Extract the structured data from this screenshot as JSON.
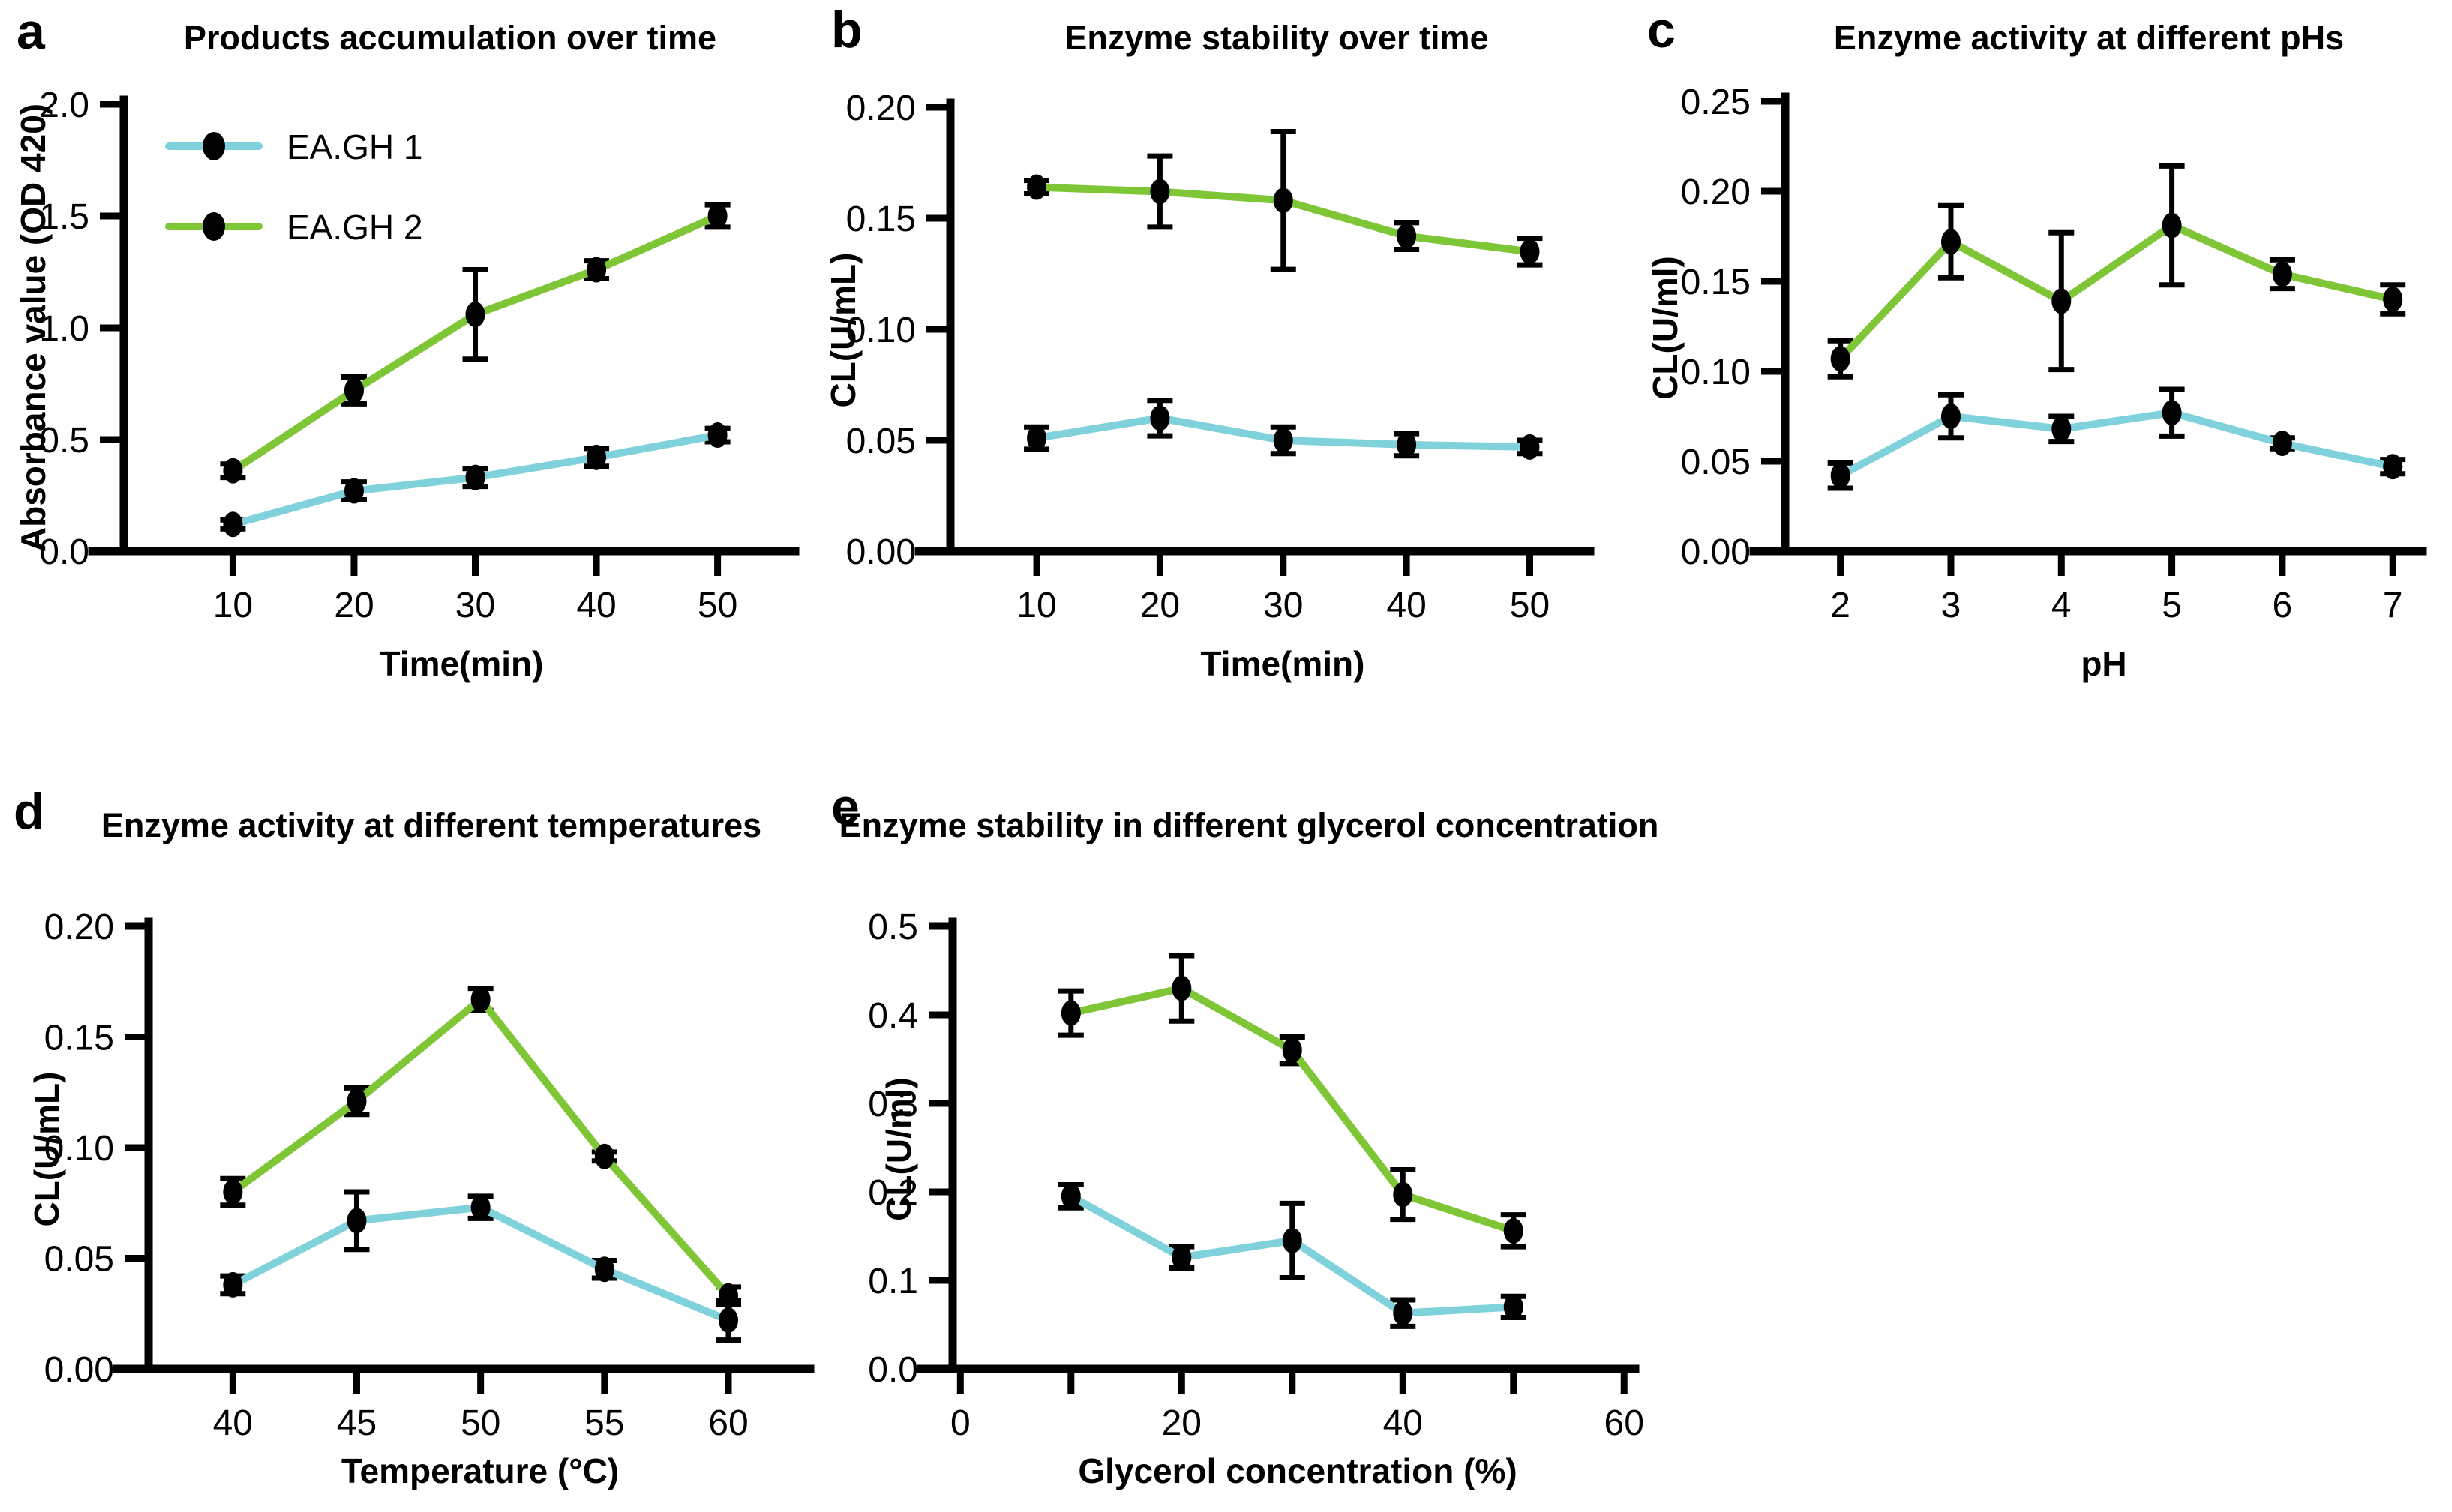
{
  "figure": {
    "background": "#ffffff",
    "series_colors": {
      "EA.GH 1": "#7FD1DB",
      "EA.GH 2": "#7EC636"
    },
    "axis_color": "#000000",
    "marker_color": "#000000"
  },
  "chart_data": [
    {
      "type": "line",
      "panel_letter": "a",
      "title": "Products accumulation over time",
      "xlabel": "Time(min)",
      "ylabel": "Absorbance value (OD 420)",
      "x": [
        10,
        20,
        30,
        40,
        50
      ],
      "xlim": [
        1,
        56.4
      ],
      "ylim": [
        0,
        2.0
      ],
      "xticks": [
        {
          "v": 10,
          "label": "10"
        },
        {
          "v": 20,
          "label": "20"
        },
        {
          "v": 30,
          "label": "30"
        },
        {
          "v": 40,
          "label": "40"
        },
        {
          "v": 50,
          "label": "50"
        }
      ],
      "yticks": [
        {
          "v": 0,
          "label": "0.0"
        },
        {
          "v": 0.5,
          "label": "0.5"
        },
        {
          "v": 1.0,
          "label": "1.0"
        },
        {
          "v": 1.5,
          "label": "1.5"
        },
        {
          "v": 2.0,
          "label": "2.0"
        }
      ],
      "grid": false,
      "legend": {
        "position": "top-left-inside",
        "entries": [
          "EA.GH 1",
          "EA.GH 2"
        ]
      },
      "series": [
        {
          "name": "EA.GH 1",
          "color": "#7FD1DB",
          "values": [
            0.12,
            0.27,
            0.33,
            0.42,
            0.52
          ],
          "errors": [
            0.02,
            0.04,
            0.04,
            0.04,
            0.03
          ]
        },
        {
          "name": "EA.GH 2",
          "color": "#7EC636",
          "values": [
            0.36,
            0.72,
            1.06,
            1.26,
            1.5
          ],
          "errors": [
            0.03,
            0.06,
            0.2,
            0.04,
            0.05
          ]
        }
      ]
    },
    {
      "type": "line",
      "panel_letter": "b",
      "title": "Enzyme stability over time",
      "xlabel": "Time(min)",
      "ylabel": "CL(U/mL)",
      "x": [
        10,
        20,
        30,
        40,
        50
      ],
      "xlim": [
        3,
        54.9
      ],
      "ylim": [
        0,
        0.2
      ],
      "xticks": [
        {
          "v": 10,
          "label": "10"
        },
        {
          "v": 20,
          "label": "20"
        },
        {
          "v": 30,
          "label": "30"
        },
        {
          "v": 40,
          "label": "40"
        },
        {
          "v": 50,
          "label": "50"
        }
      ],
      "yticks": [
        {
          "v": 0,
          "label": "0.00"
        },
        {
          "v": 0.05,
          "label": "0.05"
        },
        {
          "v": 0.1,
          "label": "0.10"
        },
        {
          "v": 0.15,
          "label": "0.15"
        },
        {
          "v": 0.2,
          "label": "0.20"
        }
      ],
      "grid": false,
      "series": [
        {
          "name": "EA.GH 1",
          "color": "#7FD1DB",
          "values": [
            0.051,
            0.06,
            0.05,
            0.048,
            0.047
          ],
          "errors": [
            0.005,
            0.008,
            0.006,
            0.005,
            0.003
          ]
        },
        {
          "name": "EA.GH 2",
          "color": "#7EC636",
          "values": [
            0.164,
            0.162,
            0.158,
            0.142,
            0.135
          ],
          "errors": [
            0.003,
            0.016,
            0.031,
            0.006,
            0.006
          ]
        }
      ]
    },
    {
      "type": "line",
      "panel_letter": "c",
      "title": "Enzyme activity at different pHs",
      "xlabel": "pH",
      "ylabel": "CL(U/ml)",
      "x": [
        2,
        3,
        4,
        5,
        6,
        7
      ],
      "xlim": [
        1.5,
        7.27
      ],
      "ylim": [
        0,
        0.25
      ],
      "xticks": [
        {
          "v": 2,
          "label": "2"
        },
        {
          "v": 3,
          "label": "3"
        },
        {
          "v": 4,
          "label": "4"
        },
        {
          "v": 5,
          "label": "5"
        },
        {
          "v": 6,
          "label": "6"
        },
        {
          "v": 7,
          "label": "7"
        }
      ],
      "yticks": [
        {
          "v": 0,
          "label": "0.00"
        },
        {
          "v": 0.05,
          "label": "0.05"
        },
        {
          "v": 0.1,
          "label": "0.10"
        },
        {
          "v": 0.15,
          "label": "0.15"
        },
        {
          "v": 0.2,
          "label": "0.20"
        },
        {
          "v": 0.25,
          "label": "0.25"
        }
      ],
      "grid": false,
      "series": [
        {
          "name": "EA.GH 1",
          "color": "#7FD1DB",
          "values": [
            0.042,
            0.075,
            0.068,
            0.077,
            0.06,
            0.047
          ],
          "errors": [
            0.007,
            0.012,
            0.007,
            0.013,
            0.003,
            0.004
          ]
        },
        {
          "name": "EA.GH 2",
          "color": "#7EC636",
          "values": [
            0.107,
            0.172,
            0.139,
            0.181,
            0.154,
            0.14
          ],
          "errors": [
            0.01,
            0.02,
            0.038,
            0.033,
            0.008,
            0.008
          ]
        }
      ]
    },
    {
      "type": "line",
      "panel_letter": "d",
      "title": "Enzyme activity at different temperatures",
      "xlabel": "Temperature (°C)",
      "ylabel": "CL(U/mL)",
      "x": [
        40,
        45,
        50,
        55,
        60
      ],
      "xlim": [
        36.6,
        63.3
      ],
      "ylim": [
        0,
        0.2
      ],
      "xticks": [
        {
          "v": 40,
          "label": "40"
        },
        {
          "v": 45,
          "label": "45"
        },
        {
          "v": 50,
          "label": "50"
        },
        {
          "v": 55,
          "label": "55"
        },
        {
          "v": 60,
          "label": "60"
        }
      ],
      "yticks": [
        {
          "v": 0,
          "label": "0.00"
        },
        {
          "v": 0.05,
          "label": "0.05"
        },
        {
          "v": 0.1,
          "label": "0.10"
        },
        {
          "v": 0.15,
          "label": "0.15"
        },
        {
          "v": 0.2,
          "label": "0.20"
        }
      ],
      "grid": false,
      "series": [
        {
          "name": "EA.GH 1",
          "color": "#7FD1DB",
          "values": [
            0.038,
            0.067,
            0.073,
            0.045,
            0.022
          ],
          "errors": [
            0.004,
            0.013,
            0.005,
            0.004,
            0.009
          ]
        },
        {
          "name": "EA.GH 2",
          "color": "#7EC636",
          "values": [
            0.08,
            0.121,
            0.167,
            0.096,
            0.033
          ],
          "errors": [
            0.006,
            0.006,
            0.005,
            0.002,
            0.004
          ]
        }
      ]
    },
    {
      "type": "line",
      "panel_letter": "e",
      "title": "Enzyme stability in different glycerol concentration",
      "xlabel": "Glycerol concentration (%)",
      "ylabel": "CL(U/ml)",
      "x": [
        10,
        20,
        30,
        40,
        50
      ],
      "xlim": [
        -0.7,
        61
      ],
      "ylim": [
        0,
        0.5
      ],
      "xticks": [
        {
          "v": 0,
          "label": "0"
        },
        {
          "v": 20,
          "label": "20"
        },
        {
          "v": 40,
          "label": "40"
        },
        {
          "v": 60,
          "label": "60"
        }
      ],
      "minor_xticks": [
        10,
        30,
        50
      ],
      "yticks": [
        {
          "v": 0,
          "label": "0.0"
        },
        {
          "v": 0.1,
          "label": "0.1"
        },
        {
          "v": 0.2,
          "label": "0.2"
        },
        {
          "v": 0.3,
          "label": "0.3"
        },
        {
          "v": 0.4,
          "label": "0.4"
        },
        {
          "v": 0.5,
          "label": "0.5"
        }
      ],
      "grid": false,
      "series": [
        {
          "name": "EA.GH 1",
          "color": "#7FD1DB",
          "values": [
            0.195,
            0.126,
            0.145,
            0.063,
            0.07
          ],
          "errors": [
            0.013,
            0.012,
            0.042,
            0.015,
            0.012
          ]
        },
        {
          "name": "EA.GH 2",
          "color": "#7EC636",
          "values": [
            0.402,
            0.43,
            0.36,
            0.197,
            0.156
          ],
          "errors": [
            0.025,
            0.037,
            0.015,
            0.028,
            0.018
          ]
        }
      ]
    }
  ]
}
